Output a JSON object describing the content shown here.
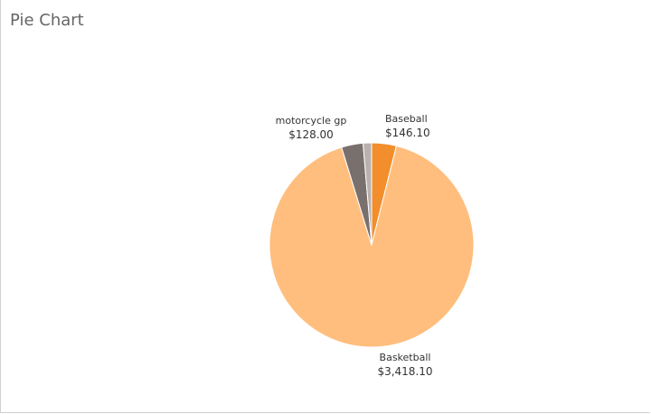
{
  "page": {
    "title": "Pie Chart"
  },
  "chart_data": {
    "type": "pie",
    "title": "Pie Chart",
    "slices": [
      {
        "label": "Baseball",
        "value": 146.1,
        "display": "$146.10",
        "color": "#f28e2b"
      },
      {
        "label": "Basketball",
        "value": 3418.1,
        "display": "$3,418.10",
        "color": "#ffbe7d"
      },
      {
        "label": "motorcycle gp",
        "value": 128.0,
        "display": "$128.00",
        "color": "#79706e"
      },
      {
        "label": "",
        "value": 50.0,
        "display": "",
        "color": "#bab0ac"
      }
    ]
  }
}
